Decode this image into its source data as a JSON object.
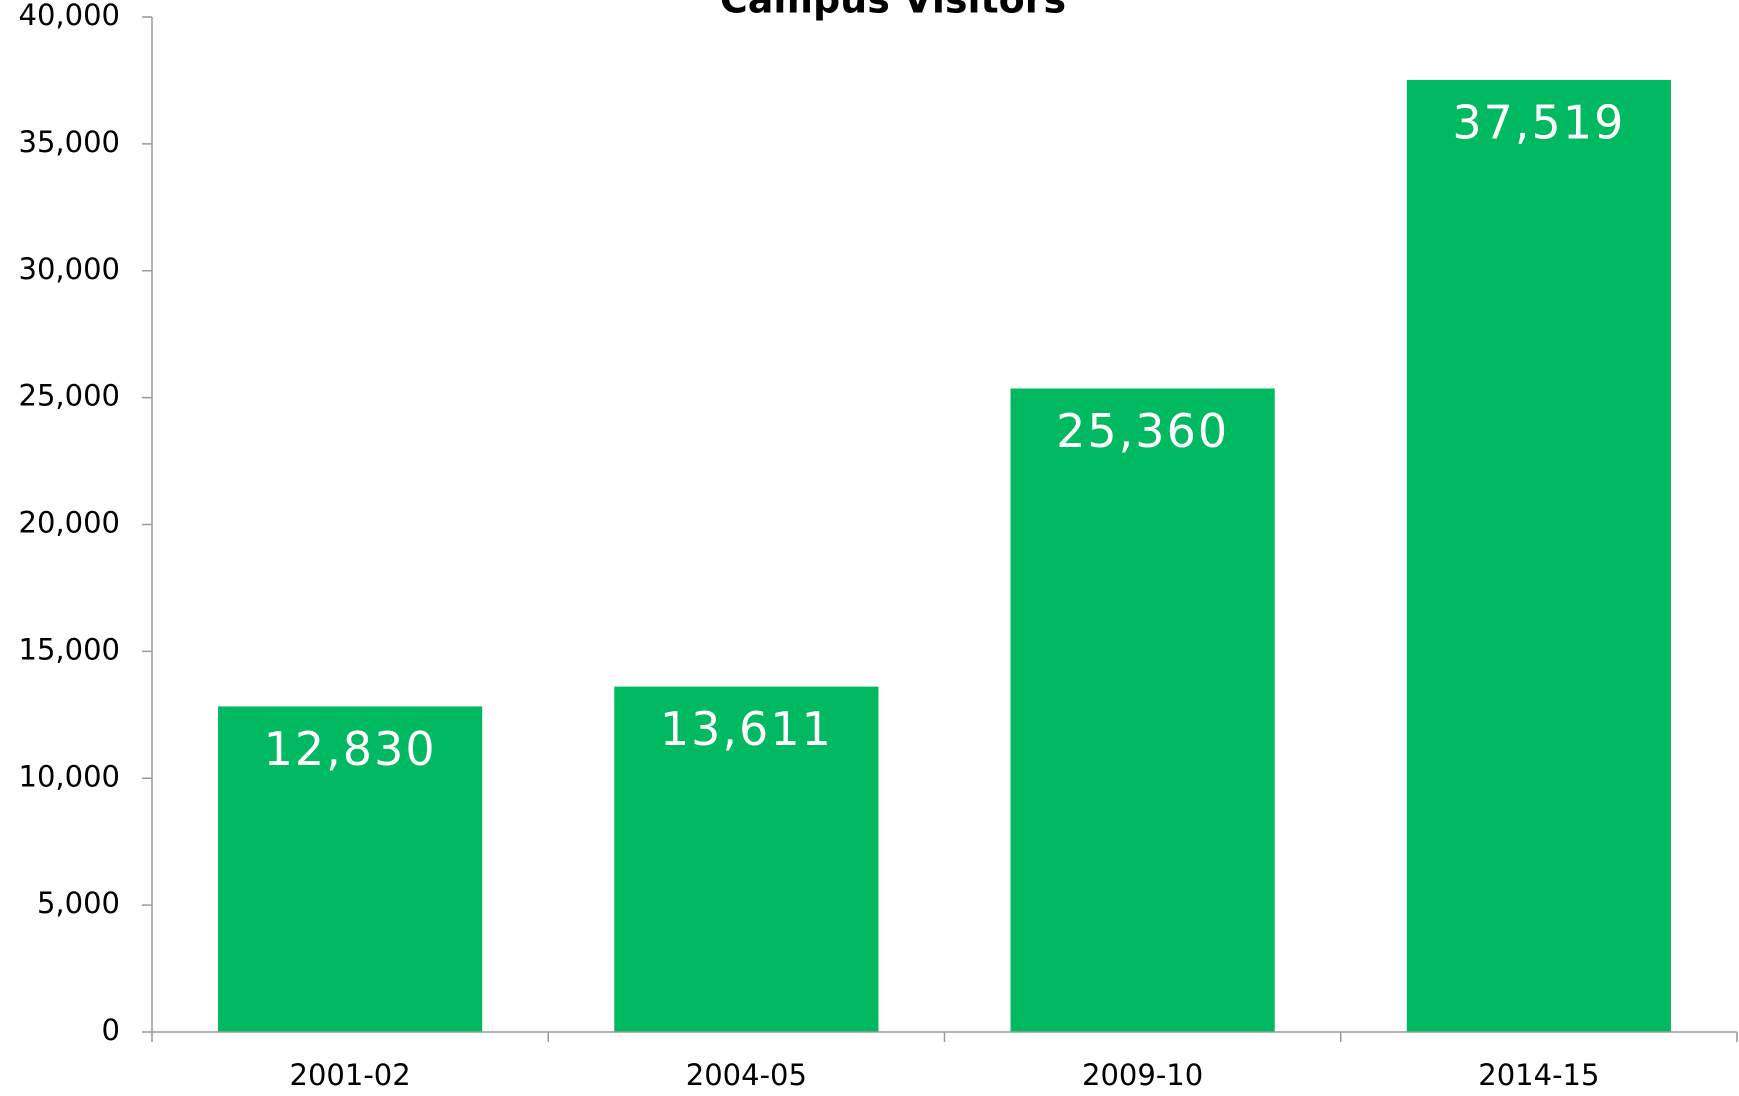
{
  "chart_data": {
    "type": "bar",
    "title": "Campus Visitors",
    "categories": [
      "2001-02",
      "2004-05",
      "2009-10",
      "2014-15"
    ],
    "values": [
      12830,
      13611,
      25360,
      37519
    ],
    "value_labels": [
      "12,830",
      "13,611",
      "25,360",
      "37,519"
    ],
    "color": "#00b961",
    "ylim": [
      0,
      40000
    ],
    "yticks": [
      0,
      {
        "value": 5000,
        "label": "5,000"
      },
      {
        "value": 10000,
        "label": "10,000"
      },
      {
        "value": 15000,
        "label": "15,000"
      },
      {
        "value": 20000,
        "label": "20,000"
      },
      {
        "value": 25000,
        "label": "25,000"
      },
      {
        "value": 30000,
        "label": "30,000"
      },
      {
        "value": 35000,
        "label": "35,000"
      },
      {
        "value": 40000,
        "label": "40,000"
      }
    ],
    "grid": false
  }
}
